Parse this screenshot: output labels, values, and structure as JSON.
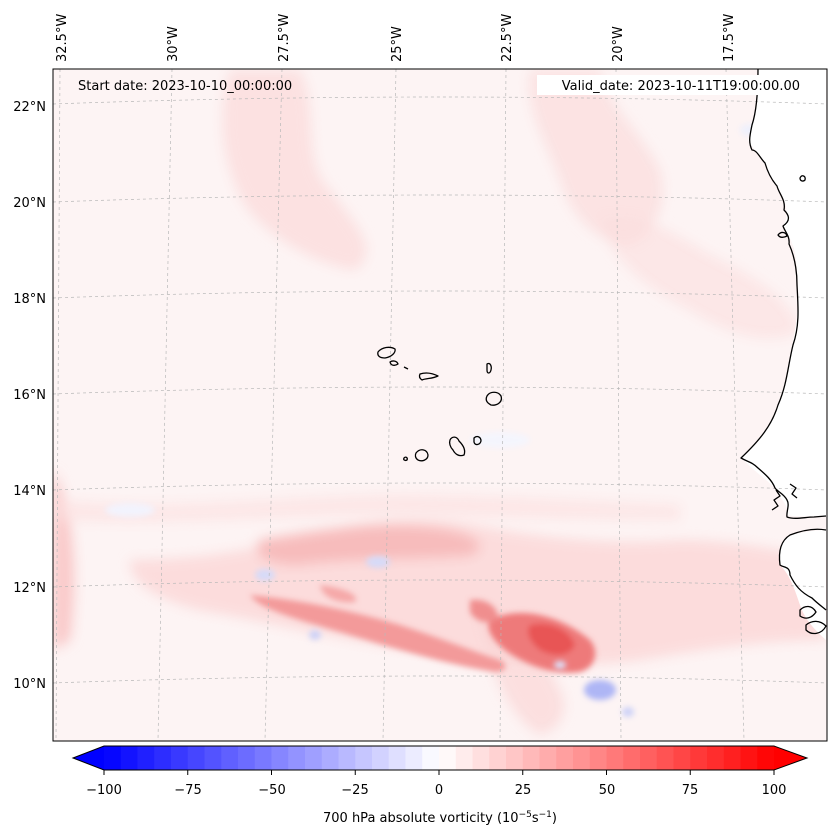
{
  "header": {
    "start_date": "Start date: 2023-10-10_00:00:00",
    "valid_date": "Valid_date: 2023-10-11T19:00:00.00"
  },
  "map": {
    "lon_labels": [
      "32.5°W",
      "30°W",
      "27.5°W",
      "25°W",
      "22.5°W",
      "20°W",
      "17.5°W"
    ],
    "lat_labels": [
      "22°N",
      "20°N",
      "18°N",
      "16°N",
      "14°N",
      "12°N",
      "10°N"
    ],
    "land_color": "#ffffff",
    "background_color": "#fdf4f4"
  },
  "colorbar": {
    "ticks": [
      "−100",
      "−75",
      "−50",
      "−25",
      "0",
      "25",
      "50",
      "75",
      "100"
    ],
    "min": -100,
    "max": 100,
    "label_main": "700 hPa absolute vorticity (10",
    "label_exp1": "−5",
    "label_mid": "s",
    "label_exp2": "−1",
    "label_end": ")",
    "negative_color": "#0000ff",
    "positive_color": "#ff0000"
  }
}
